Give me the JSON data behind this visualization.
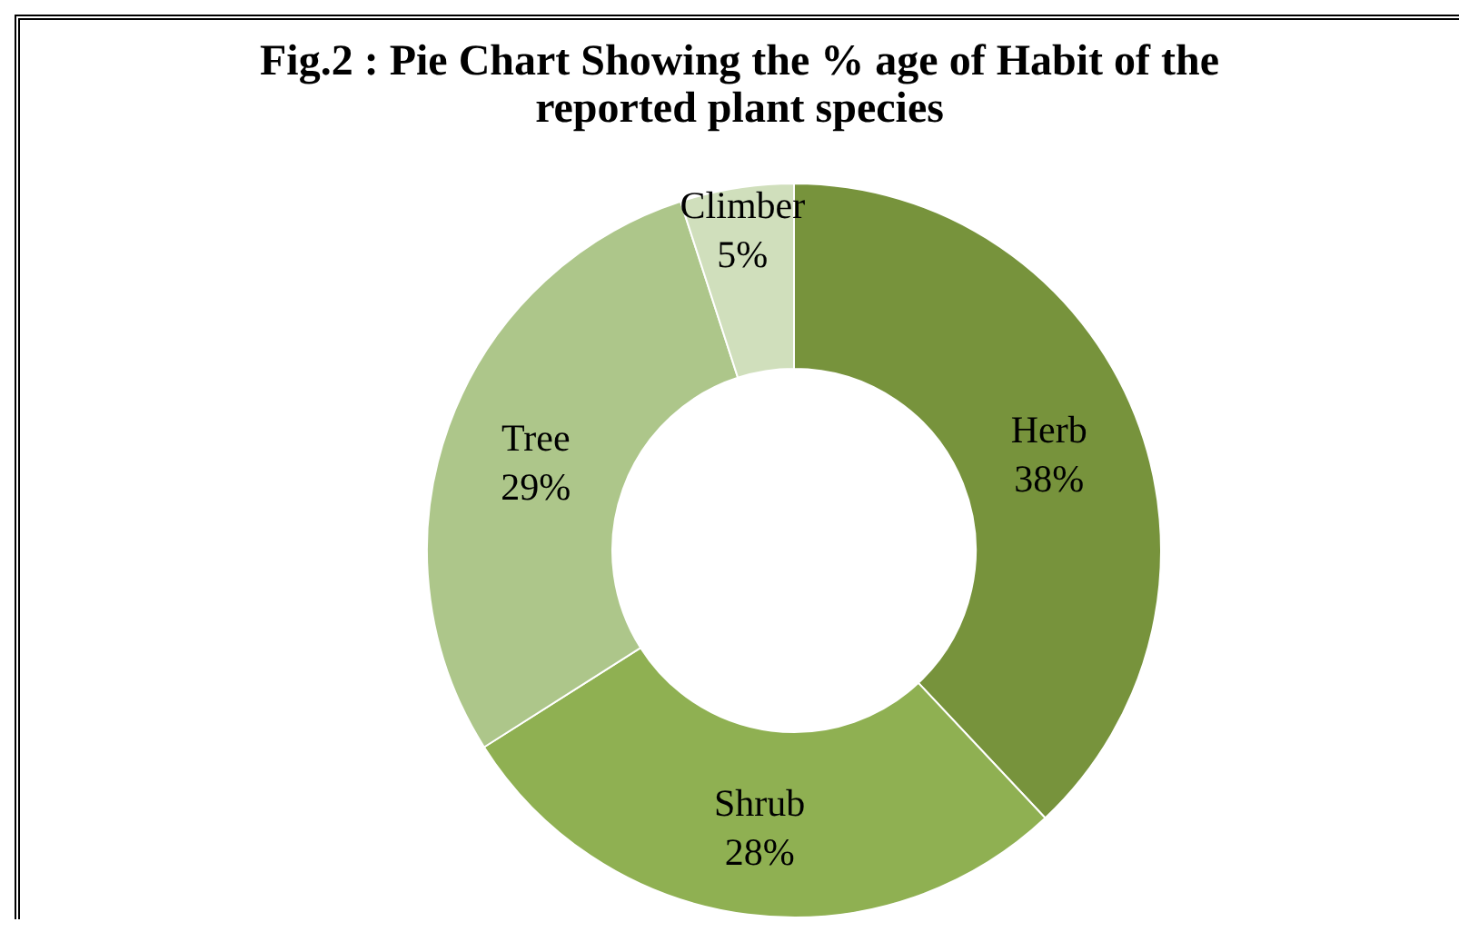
{
  "chart_data": {
    "type": "donut",
    "title": "Fig.2 : Pie Chart Showing the % age of Habit of the reported plant species",
    "categories": [
      "Herb",
      "Shrub",
      "Tree",
      "Climber"
    ],
    "values": [
      38,
      28,
      29,
      5
    ],
    "value_labels": [
      "38%",
      "28%",
      "29%",
      "5%"
    ],
    "colors": [
      "#77933c",
      "#8fb052",
      "#adc68a",
      "#d0dfbc"
    ]
  }
}
